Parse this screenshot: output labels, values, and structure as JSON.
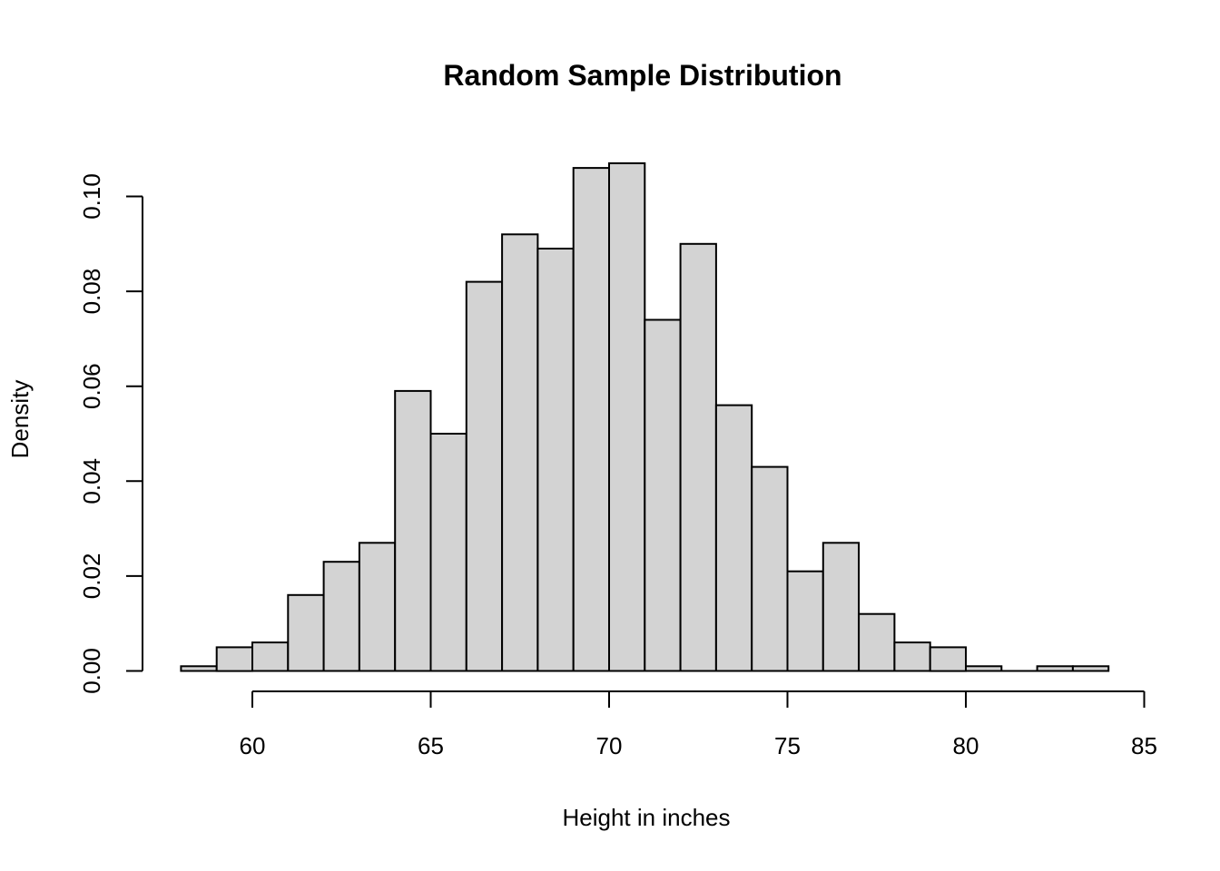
{
  "chart_data": {
    "type": "bar",
    "subtype": "histogram",
    "title": "Random Sample Distribution",
    "xlabel": "Height in inches",
    "ylabel": "Density",
    "x_ticks": [
      60,
      65,
      70,
      75,
      80,
      85
    ],
    "y_ticks": [
      0,
      0.02,
      0.04,
      0.06,
      0.08,
      0.1
    ],
    "y_tick_labels": [
      "0.00",
      "0.02",
      "0.04",
      "0.06",
      "0.08",
      "0.10"
    ],
    "xlim": [
      58,
      85
    ],
    "ylim": [
      0,
      0.1
    ],
    "grid": false,
    "legend": "none",
    "bins": {
      "start": 58,
      "width": 1,
      "end": 84
    },
    "densities": [
      0.001,
      0.005,
      0.006,
      0.016,
      0.023,
      0.027,
      0.059,
      0.05,
      0.082,
      0.092,
      0.089,
      0.106,
      0.107,
      0.074,
      0.09,
      0.056,
      0.043,
      0.021,
      0.027,
      0.012,
      0.006,
      0.005,
      0.001,
      0,
      0.001,
      0.001
    ],
    "colors": {
      "bar_fill": "#d3d3d3",
      "bar_border": "#000000",
      "axis": "#000000",
      "text": "#000000",
      "background": "#ffffff"
    }
  }
}
